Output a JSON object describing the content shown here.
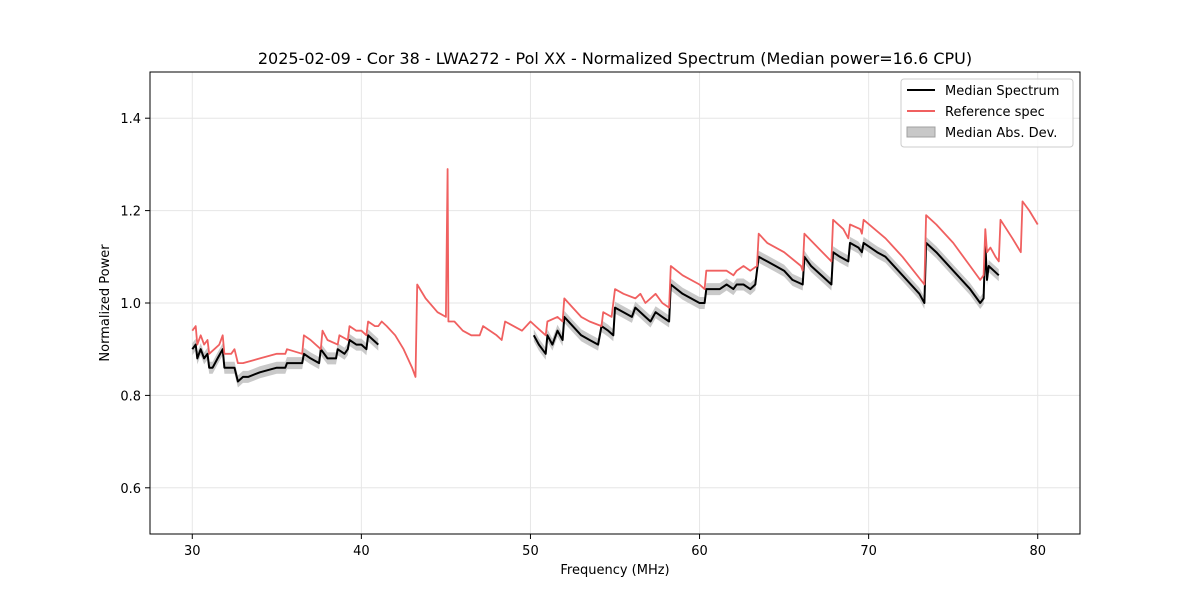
{
  "chart_data": {
    "type": "line",
    "title": "2025-02-09 - Cor 38 - LWA272 - Pol XX - Normalized Spectrum (Median power=16.6 CPU)",
    "xlabel": "Frequency (MHz)",
    "ylabel": "Normalized Power",
    "xlim": [
      27.5,
      82.5
    ],
    "ylim": [
      0.5,
      1.5
    ],
    "xticks": [
      30,
      40,
      50,
      60,
      70,
      80
    ],
    "yticks": [
      0.6,
      0.8,
      1.0,
      1.2,
      1.4
    ],
    "xtick_labels": [
      "30",
      "40",
      "50",
      "60",
      "70",
      "80"
    ],
    "ytick_labels": [
      "0.6",
      "0.8",
      "1.0",
      "1.2",
      "1.4"
    ],
    "grid": true,
    "legend_position": "top-right",
    "series": [
      {
        "name": "Median Spectrum",
        "color": "#000000",
        "segments": [
          [
            [
              30.0,
              0.9
            ],
            [
              30.2,
              0.91
            ],
            [
              30.3,
              0.88
            ],
            [
              30.5,
              0.9
            ],
            [
              30.7,
              0.88
            ],
            [
              30.9,
              0.89
            ],
            [
              31.0,
              0.86
            ],
            [
              31.2,
              0.86
            ],
            [
              31.5,
              0.88
            ],
            [
              31.8,
              0.9
            ],
            [
              31.9,
              0.86
            ],
            [
              32.2,
              0.86
            ],
            [
              32.5,
              0.86
            ],
            [
              32.7,
              0.83
            ],
            [
              33.0,
              0.84
            ],
            [
              33.3,
              0.84
            ],
            [
              34.0,
              0.85
            ],
            [
              35.0,
              0.86
            ],
            [
              35.5,
              0.86
            ],
            [
              35.6,
              0.87
            ],
            [
              36.5,
              0.87
            ],
            [
              36.6,
              0.89
            ],
            [
              37.0,
              0.88
            ],
            [
              37.5,
              0.87
            ],
            [
              37.6,
              0.9
            ],
            [
              38.0,
              0.88
            ],
            [
              38.5,
              0.88
            ],
            [
              38.6,
              0.9
            ],
            [
              39.0,
              0.89
            ],
            [
              39.2,
              0.9
            ],
            [
              39.3,
              0.92
            ],
            [
              39.7,
              0.91
            ],
            [
              40.0,
              0.91
            ],
            [
              40.3,
              0.9
            ],
            [
              40.4,
              0.93
            ],
            [
              40.7,
              0.92
            ],
            [
              41.0,
              0.91
            ]
          ],
          [
            [
              50.2,
              0.93
            ],
            [
              50.5,
              0.91
            ],
            [
              50.9,
              0.89
            ],
            [
              51.0,
              0.93
            ],
            [
              51.3,
              0.91
            ],
            [
              51.6,
              0.94
            ],
            [
              51.9,
              0.92
            ],
            [
              52.0,
              0.97
            ],
            [
              52.5,
              0.95
            ],
            [
              53.0,
              0.93
            ],
            [
              53.5,
              0.92
            ],
            [
              54.0,
              0.91
            ],
            [
              54.2,
              0.95
            ],
            [
              54.6,
              0.94
            ],
            [
              54.9,
              0.93
            ],
            [
              55.0,
              0.99
            ],
            [
              55.5,
              0.98
            ],
            [
              56.0,
              0.97
            ],
            [
              56.2,
              0.99
            ],
            [
              56.5,
              0.98
            ],
            [
              56.8,
              0.97
            ],
            [
              57.1,
              0.96
            ],
            [
              57.4,
              0.98
            ],
            [
              57.8,
              0.97
            ],
            [
              58.2,
              0.96
            ],
            [
              58.3,
              1.04
            ],
            [
              59.0,
              1.02
            ],
            [
              59.5,
              1.01
            ],
            [
              60.0,
              1.0
            ],
            [
              60.3,
              1.0
            ],
            [
              60.4,
              1.03
            ],
            [
              60.7,
              1.03
            ],
            [
              61.2,
              1.03
            ],
            [
              61.6,
              1.04
            ],
            [
              62.0,
              1.03
            ],
            [
              62.2,
              1.04
            ],
            [
              62.6,
              1.04
            ],
            [
              63.0,
              1.03
            ],
            [
              63.3,
              1.04
            ],
            [
              63.5,
              1.1
            ],
            [
              64.0,
              1.09
            ],
            [
              64.5,
              1.08
            ],
            [
              65.0,
              1.07
            ],
            [
              65.5,
              1.05
            ],
            [
              66.1,
              1.04
            ],
            [
              66.2,
              1.1
            ],
            [
              66.6,
              1.08
            ],
            [
              67.2,
              1.06
            ],
            [
              67.8,
              1.04
            ],
            [
              67.9,
              1.11
            ],
            [
              68.3,
              1.1
            ],
            [
              68.8,
              1.09
            ],
            [
              68.9,
              1.13
            ],
            [
              69.4,
              1.12
            ],
            [
              69.6,
              1.11
            ],
            [
              69.7,
              1.13
            ],
            [
              70.5,
              1.11
            ],
            [
              71.0,
              1.1
            ],
            [
              72.0,
              1.06
            ],
            [
              73.0,
              1.02
            ],
            [
              73.3,
              1.0
            ],
            [
              73.4,
              1.13
            ],
            [
              74.0,
              1.11
            ],
            [
              75.0,
              1.07
            ],
            [
              76.0,
              1.03
            ],
            [
              76.6,
              1.0
            ],
            [
              76.8,
              1.01
            ],
            [
              76.9,
              1.13
            ],
            [
              77.0,
              1.05
            ],
            [
              77.1,
              1.08
            ],
            [
              77.4,
              1.07
            ],
            [
              77.7,
              1.06
            ]
          ]
        ]
      },
      {
        "name": "Reference spec",
        "color": "#f06060",
        "segments": [
          [
            [
              30.0,
              0.94
            ],
            [
              30.2,
              0.95
            ],
            [
              30.3,
              0.91
            ],
            [
              30.5,
              0.93
            ],
            [
              30.7,
              0.91
            ],
            [
              30.9,
              0.92
            ],
            [
              31.0,
              0.89
            ],
            [
              31.3,
              0.9
            ],
            [
              31.6,
              0.91
            ],
            [
              31.8,
              0.93
            ],
            [
              31.9,
              0.89
            ],
            [
              32.3,
              0.89
            ],
            [
              32.5,
              0.9
            ],
            [
              32.7,
              0.87
            ],
            [
              33.0,
              0.87
            ],
            [
              34.0,
              0.88
            ],
            [
              35.0,
              0.89
            ],
            [
              35.5,
              0.89
            ],
            [
              35.6,
              0.9
            ],
            [
              36.5,
              0.89
            ],
            [
              36.6,
              0.93
            ],
            [
              37.0,
              0.92
            ],
            [
              37.6,
              0.9
            ],
            [
              37.7,
              0.94
            ],
            [
              38.0,
              0.92
            ],
            [
              38.6,
              0.91
            ],
            [
              38.7,
              0.93
            ],
            [
              39.2,
              0.92
            ],
            [
              39.3,
              0.95
            ],
            [
              39.7,
              0.94
            ],
            [
              40.0,
              0.94
            ],
            [
              40.3,
              0.93
            ],
            [
              40.4,
              0.96
            ],
            [
              40.8,
              0.95
            ],
            [
              41.0,
              0.95
            ],
            [
              41.2,
              0.96
            ],
            [
              41.5,
              0.95
            ],
            [
              42.0,
              0.93
            ],
            [
              42.5,
              0.9
            ],
            [
              43.0,
              0.86
            ],
            [
              43.2,
              0.84
            ],
            [
              43.3,
              1.04
            ],
            [
              43.8,
              1.01
            ],
            [
              44.5,
              0.98
            ],
            [
              45.0,
              0.97
            ],
            [
              45.1,
              1.29
            ],
            [
              45.15,
              0.96
            ],
            [
              45.5,
              0.96
            ],
            [
              46.0,
              0.94
            ],
            [
              46.5,
              0.93
            ],
            [
              47.0,
              0.93
            ],
            [
              47.2,
              0.95
            ],
            [
              48.0,
              0.93
            ],
            [
              48.3,
              0.92
            ],
            [
              48.5,
              0.96
            ],
            [
              49.0,
              0.95
            ],
            [
              49.5,
              0.94
            ],
            [
              50.0,
              0.96
            ],
            [
              50.3,
              0.95
            ],
            [
              50.9,
              0.93
            ],
            [
              51.0,
              0.96
            ],
            [
              51.6,
              0.97
            ],
            [
              51.9,
              0.96
            ],
            [
              52.0,
              1.01
            ],
            [
              52.5,
              0.99
            ],
            [
              53.0,
              0.97
            ],
            [
              53.5,
              0.96
            ],
            [
              54.2,
              0.95
            ],
            [
              54.3,
              0.98
            ],
            [
              54.8,
              0.97
            ],
            [
              55.0,
              1.03
            ],
            [
              55.5,
              1.02
            ],
            [
              56.2,
              1.01
            ],
            [
              56.5,
              1.02
            ],
            [
              56.8,
              1.0
            ],
            [
              57.1,
              1.01
            ],
            [
              57.4,
              1.02
            ],
            [
              57.8,
              1.0
            ],
            [
              58.2,
              0.99
            ],
            [
              58.3,
              1.08
            ],
            [
              59.0,
              1.06
            ],
            [
              60.0,
              1.04
            ],
            [
              60.3,
              1.03
            ],
            [
              60.4,
              1.07
            ],
            [
              60.7,
              1.07
            ],
            [
              61.2,
              1.07
            ],
            [
              61.6,
              1.07
            ],
            [
              62.0,
              1.06
            ],
            [
              62.2,
              1.07
            ],
            [
              62.6,
              1.08
            ],
            [
              63.0,
              1.07
            ],
            [
              63.4,
              1.08
            ],
            [
              63.5,
              1.15
            ],
            [
              64.0,
              1.13
            ],
            [
              65.0,
              1.11
            ],
            [
              66.0,
              1.08
            ],
            [
              66.1,
              1.07
            ],
            [
              66.2,
              1.15
            ],
            [
              67.0,
              1.12
            ],
            [
              67.8,
              1.09
            ],
            [
              67.9,
              1.18
            ],
            [
              68.5,
              1.16
            ],
            [
              68.8,
              1.14
            ],
            [
              68.9,
              1.17
            ],
            [
              69.5,
              1.16
            ],
            [
              69.6,
              1.15
            ],
            [
              69.7,
              1.18
            ],
            [
              71.0,
              1.14
            ],
            [
              72.0,
              1.1
            ],
            [
              73.3,
              1.04
            ],
            [
              73.4,
              1.19
            ],
            [
              74.0,
              1.17
            ],
            [
              75.0,
              1.13
            ],
            [
              76.0,
              1.08
            ],
            [
              76.6,
              1.05
            ],
            [
              76.8,
              1.06
            ],
            [
              76.9,
              1.16
            ],
            [
              77.0,
              1.11
            ],
            [
              77.2,
              1.12
            ],
            [
              77.5,
              1.1
            ],
            [
              77.7,
              1.09
            ],
            [
              77.8,
              1.18
            ],
            [
              78.5,
              1.14
            ],
            [
              79.0,
              1.11
            ],
            [
              79.1,
              1.22
            ],
            [
              79.5,
              1.2
            ],
            [
              80.0,
              1.17
            ]
          ]
        ]
      },
      {
        "name": "Median Abs. Dev.",
        "color": "#c0c0c0",
        "type": "band",
        "halfwidth": 0.013
      }
    ]
  }
}
